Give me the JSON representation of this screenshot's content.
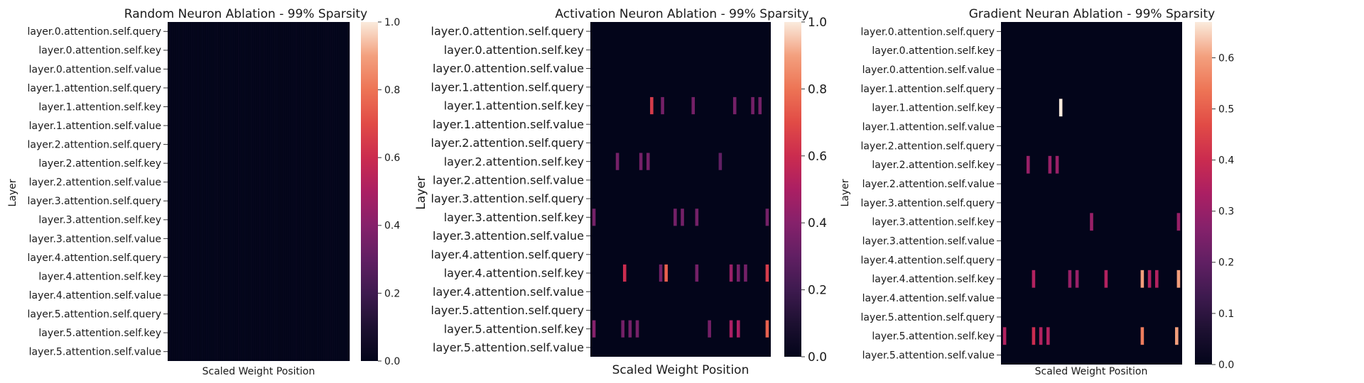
{
  "chart_data": [
    {
      "type": "heatmap",
      "title": "Random Neuron Ablation - 99% Sparsity",
      "xlabel": "Scaled Weight Position",
      "ylabel": "Layer",
      "rows": [
        "layer.0.attention.self.query",
        "layer.0.attention.self.key",
        "layer.0.attention.self.value",
        "layer.1.attention.self.query",
        "layer.1.attention.self.key",
        "layer.1.attention.self.value",
        "layer.2.attention.self.query",
        "layer.2.attention.self.key",
        "layer.2.attention.self.value",
        "layer.3.attention.self.query",
        "layer.3.attention.self.key",
        "layer.3.attention.self.value",
        "layer.4.attention.self.query",
        "layer.4.attention.self.key",
        "layer.4.attention.self.value",
        "layer.5.attention.self.query",
        "layer.5.attention.self.key",
        "layer.5.attention.self.value"
      ],
      "x_range": [
        0,
        1
      ],
      "colorbar": {
        "range": [
          0,
          1.0
        ],
        "ticks": [
          "0.0",
          "0.2",
          "0.4",
          "0.6",
          "0.8",
          "1.0"
        ],
        "tick_values": [
          0,
          0.2,
          0.4,
          0.6,
          0.8,
          1.0
        ]
      },
      "background_value": 0.02,
      "cells": []
    },
    {
      "type": "heatmap",
      "title": "Activation Neuron Ablation - 99% Sparsity",
      "xlabel": "Scaled Weight Position",
      "ylabel": "Layer",
      "rows": [
        "layer.0.attention.self.query",
        "layer.0.attention.self.key",
        "layer.0.attention.self.value",
        "layer.1.attention.self.query",
        "layer.1.attention.self.key",
        "layer.1.attention.self.value",
        "layer.2.attention.self.query",
        "layer.2.attention.self.key",
        "layer.2.attention.self.value",
        "layer.3.attention.self.query",
        "layer.3.attention.self.key",
        "layer.3.attention.self.value",
        "layer.4.attention.self.query",
        "layer.4.attention.self.key",
        "layer.4.attention.self.value",
        "layer.5.attention.self.query",
        "layer.5.attention.self.key",
        "layer.5.attention.self.value"
      ],
      "x_range": [
        0,
        1
      ],
      "colorbar": {
        "range": [
          0,
          1.0
        ],
        "ticks": [
          "0.0",
          "0.2",
          "0.4",
          "0.6",
          "0.8",
          "1.0"
        ],
        "tick_values": [
          0,
          0.2,
          0.4,
          0.6,
          0.8,
          1.0
        ]
      },
      "background_value": 0.0,
      "cells": [
        {
          "row": 4,
          "x": 0.34,
          "value": 0.65
        },
        {
          "row": 4,
          "x": 0.4,
          "value": 0.35
        },
        {
          "row": 4,
          "x": 0.57,
          "value": 0.35
        },
        {
          "row": 4,
          "x": 0.8,
          "value": 0.35
        },
        {
          "row": 4,
          "x": 0.9,
          "value": 0.35
        },
        {
          "row": 4,
          "x": 0.94,
          "value": 0.35
        },
        {
          "row": 7,
          "x": 0.15,
          "value": 0.35
        },
        {
          "row": 7,
          "x": 0.28,
          "value": 0.35
        },
        {
          "row": 7,
          "x": 0.32,
          "value": 0.35
        },
        {
          "row": 7,
          "x": 0.72,
          "value": 0.3
        },
        {
          "row": 10,
          "x": 0.02,
          "value": 0.35
        },
        {
          "row": 10,
          "x": 0.47,
          "value": 0.35
        },
        {
          "row": 10,
          "x": 0.51,
          "value": 0.35
        },
        {
          "row": 10,
          "x": 0.59,
          "value": 0.35
        },
        {
          "row": 10,
          "x": 0.98,
          "value": 0.35
        },
        {
          "row": 13,
          "x": 0.19,
          "value": 0.6
        },
        {
          "row": 13,
          "x": 0.39,
          "value": 0.35
        },
        {
          "row": 13,
          "x": 0.42,
          "value": 0.75
        },
        {
          "row": 13,
          "x": 0.59,
          "value": 0.35
        },
        {
          "row": 13,
          "x": 0.78,
          "value": 0.45
        },
        {
          "row": 13,
          "x": 0.82,
          "value": 0.35
        },
        {
          "row": 13,
          "x": 0.86,
          "value": 0.35
        },
        {
          "row": 13,
          "x": 0.98,
          "value": 0.65
        },
        {
          "row": 16,
          "x": 0.02,
          "value": 0.4
        },
        {
          "row": 16,
          "x": 0.18,
          "value": 0.35
        },
        {
          "row": 16,
          "x": 0.22,
          "value": 0.35
        },
        {
          "row": 16,
          "x": 0.26,
          "value": 0.35
        },
        {
          "row": 16,
          "x": 0.66,
          "value": 0.35
        },
        {
          "row": 16,
          "x": 0.78,
          "value": 0.5
        },
        {
          "row": 16,
          "x": 0.82,
          "value": 0.5
        },
        {
          "row": 16,
          "x": 0.98,
          "value": 0.75
        }
      ]
    },
    {
      "type": "heatmap",
      "title": "Gradient Neuran Ablation - 99% Sparsity",
      "xlabel": "Scaled Weight Position",
      "ylabel": "Layer",
      "rows": [
        "layer.0.attention.self.query",
        "layer.0.attention.self.key",
        "layer.0.attention.self.value",
        "layer.1.attention.self.query",
        "layer.1.attention.self.key",
        "layer.1.attention.self.value",
        "layer.2.attention.self.query",
        "layer.2.attention.self.key",
        "layer.2.attention.self.value",
        "layer.3.attention.self.query",
        "layer.3.attention.self.key",
        "layer.3.attention.self.value",
        "layer.4.attention.self.query",
        "layer.4.attention.self.key",
        "layer.4.attention.self.value",
        "layer.5.attention.self.query",
        "layer.5.attention.self.key",
        "layer.5.attention.self.value"
      ],
      "x_range": [
        0,
        1
      ],
      "colorbar": {
        "range": [
          0,
          0.67
        ],
        "ticks": [
          "0.0",
          "0.1",
          "0.2",
          "0.3",
          "0.4",
          "0.5",
          "0.6"
        ],
        "tick_values": [
          0,
          0.1,
          0.2,
          0.3,
          0.4,
          0.5,
          0.6
        ]
      },
      "background_value": 0.0,
      "cells": [
        {
          "row": 4,
          "x": 0.33,
          "value": 0.67
        },
        {
          "row": 7,
          "x": 0.15,
          "value": 0.3
        },
        {
          "row": 7,
          "x": 0.27,
          "value": 0.3
        },
        {
          "row": 7,
          "x": 0.31,
          "value": 0.3
        },
        {
          "row": 10,
          "x": 0.5,
          "value": 0.3
        },
        {
          "row": 10,
          "x": 0.98,
          "value": 0.3
        },
        {
          "row": 13,
          "x": 0.18,
          "value": 0.35
        },
        {
          "row": 13,
          "x": 0.38,
          "value": 0.3
        },
        {
          "row": 13,
          "x": 0.42,
          "value": 0.3
        },
        {
          "row": 13,
          "x": 0.58,
          "value": 0.35
        },
        {
          "row": 13,
          "x": 0.78,
          "value": 0.6
        },
        {
          "row": 13,
          "x": 0.82,
          "value": 0.35
        },
        {
          "row": 13,
          "x": 0.86,
          "value": 0.35
        },
        {
          "row": 13,
          "x": 0.98,
          "value": 0.6
        },
        {
          "row": 16,
          "x": 0.02,
          "value": 0.35
        },
        {
          "row": 16,
          "x": 0.18,
          "value": 0.4
        },
        {
          "row": 16,
          "x": 0.22,
          "value": 0.35
        },
        {
          "row": 16,
          "x": 0.26,
          "value": 0.35
        },
        {
          "row": 16,
          "x": 0.78,
          "value": 0.55
        },
        {
          "row": 16,
          "x": 0.97,
          "value": 0.6
        }
      ]
    }
  ]
}
